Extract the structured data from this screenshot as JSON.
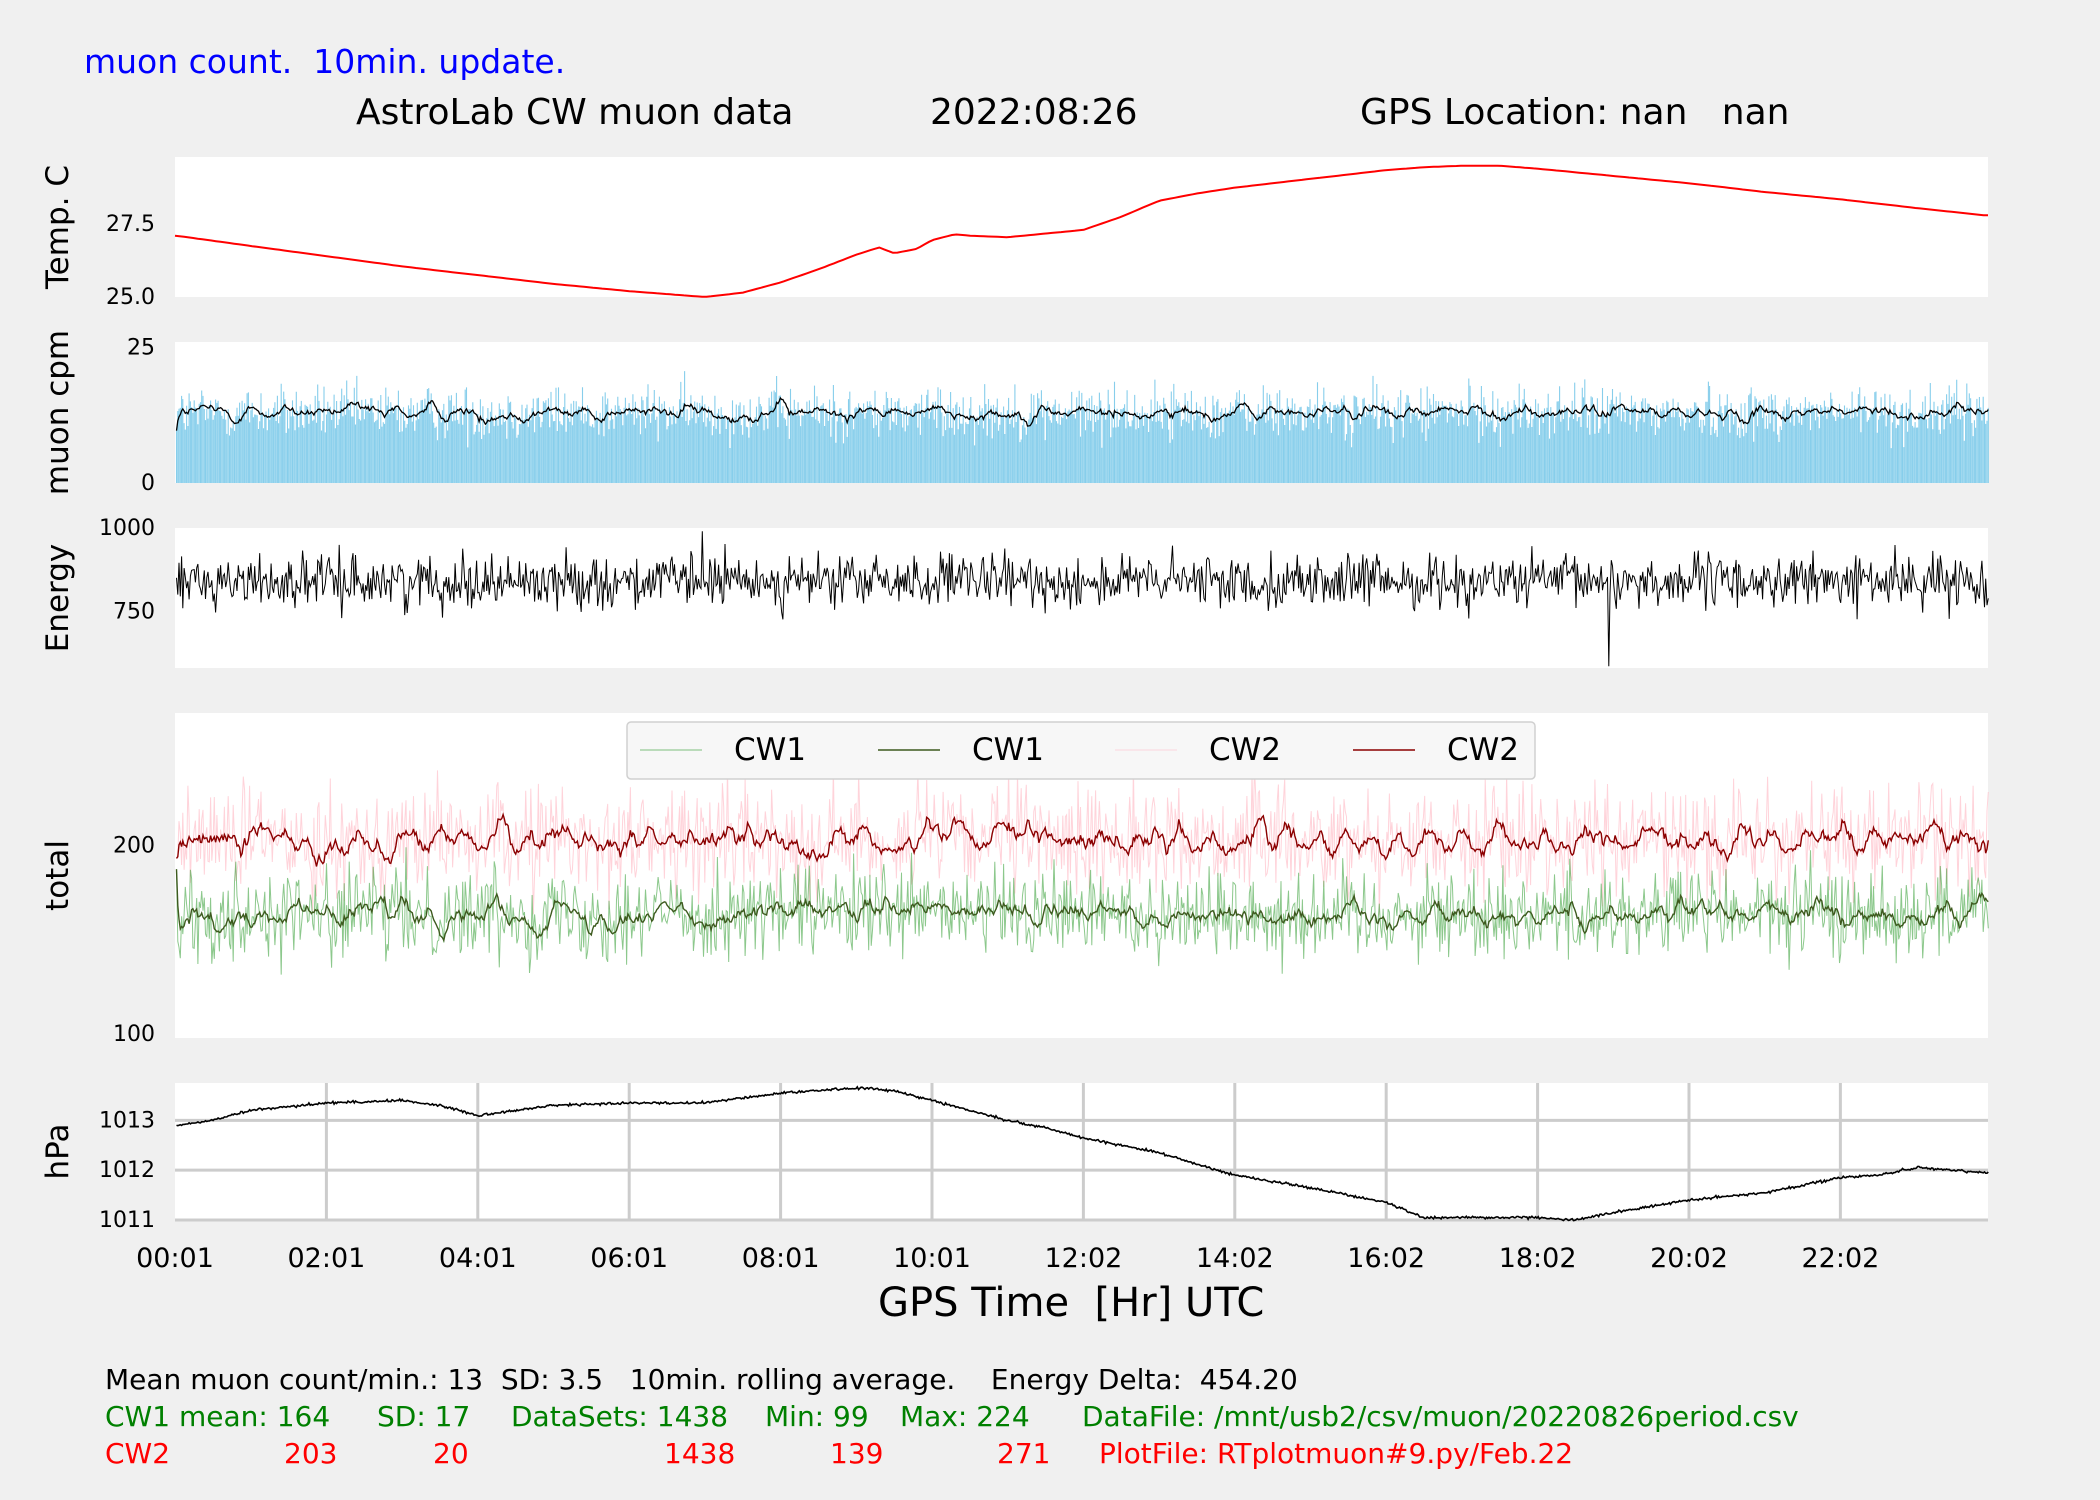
{
  "header": {
    "update_note": "muon count.  10min. update.",
    "title": "AstroLab CW muon data",
    "date": "2022:08:26",
    "gps": "GPS Location: nan   nan"
  },
  "colors": {
    "background": "#f0f0f0",
    "panel": "#ffffff",
    "temperature": "#ff0000",
    "muon_bars": "#87ceeb",
    "cw1_raw": "#2e9b2e",
    "cw1_avg": "#3d5a1e",
    "cw2_raw": "#ffc0cb",
    "cw2_avg": "#8b0000",
    "header_blue": "#0000ff",
    "stats_green": "#008000",
    "stats_red": "#ff0000",
    "grid": "#cccccc"
  },
  "chart_data": [
    {
      "type": "line",
      "ylabel": "Temp. C",
      "ylim": [
        25.0,
        29.8
      ],
      "yticks": [
        "27.5",
        "25.0"
      ],
      "x_unit": "hour",
      "series": [
        {
          "color": "#ff0000",
          "x": [
            0.02,
            1,
            2,
            3,
            4,
            5,
            6,
            7,
            7.5,
            8,
            8.5,
            9,
            9.3,
            9.5,
            9.8,
            10,
            10.3,
            10.5,
            11,
            12,
            12.5,
            13,
            13.5,
            14,
            15,
            16,
            16.5,
            17,
            17.5,
            18,
            19,
            20,
            21,
            22,
            23,
            23.9
          ],
          "y": [
            27.1,
            26.75,
            26.4,
            26.05,
            25.75,
            25.45,
            25.2,
            25.0,
            25.15,
            25.5,
            25.95,
            26.45,
            26.7,
            26.5,
            26.65,
            26.95,
            27.15,
            27.1,
            27.05,
            27.3,
            27.75,
            28.3,
            28.55,
            28.75,
            29.05,
            29.35,
            29.45,
            29.5,
            29.5,
            29.4,
            29.15,
            28.9,
            28.6,
            28.35,
            28.05,
            27.8
          ]
        }
      ]
    },
    {
      "type": "bar",
      "ylabel": "muon cpm",
      "ylim": [
        0,
        26
      ],
      "yticks": [
        "25",
        "0"
      ],
      "x_unit": "hour",
      "generated_series": {
        "name_hint": "per-minute muon counts",
        "mean": 13,
        "sd": 3.5,
        "datasets": 1438
      },
      "overlay": {
        "label": "10min. rolling average",
        "color": "#000000"
      }
    },
    {
      "type": "line",
      "ylabel": "Energy",
      "ylim": [
        580,
        1000
      ],
      "yticks": [
        "1000",
        "750"
      ],
      "x_unit": "hour",
      "generated_series": {
        "mean": 840,
        "spread": 55,
        "min": 585,
        "max": 990
      }
    },
    {
      "type": "line",
      "ylabel": "total",
      "ylim": [
        98,
        270
      ],
      "yticks": [
        "200",
        "100"
      ],
      "x_unit": "hour",
      "legend": {
        "placement": "top-center",
        "entries": [
          {
            "label": "CW1",
            "color": "#2e9b2e",
            "style": "raw"
          },
          {
            "label": "CW1",
            "color": "#3d5a1e",
            "style": "average"
          },
          {
            "label": "CW2",
            "color": "#ffc0cb",
            "style": "raw"
          },
          {
            "label": "CW2",
            "color": "#8b0000",
            "style": "average"
          }
        ]
      },
      "series": [
        {
          "name": "CW1",
          "mean": 164,
          "sd": 17,
          "min": 99,
          "max": 224,
          "datasets": 1438
        },
        {
          "name": "CW2",
          "mean": 203,
          "sd": 20,
          "min": 139,
          "max": 271,
          "datasets": 1438
        }
      ]
    },
    {
      "type": "line",
      "ylabel": "hPa",
      "ylim": [
        1011.0,
        1013.75
      ],
      "yticks": [
        "1013",
        "1012",
        "1011"
      ],
      "grid": true,
      "x_unit": "hour",
      "series": [
        {
          "color": "#000000",
          "x": [
            0.02,
            0.5,
            1,
            2,
            3,
            3.5,
            4,
            4.5,
            5,
            6,
            7,
            8,
            9,
            9.5,
            10,
            11,
            11.5,
            12,
            13,
            14,
            15,
            16,
            16.5,
            17,
            18,
            18.5,
            19,
            20,
            21,
            22,
            22.5,
            23,
            23.9
          ],
          "y": [
            1012.9,
            1013.0,
            1013.2,
            1013.35,
            1013.4,
            1013.3,
            1013.1,
            1013.2,
            1013.3,
            1013.35,
            1013.35,
            1013.55,
            1013.65,
            1013.6,
            1013.4,
            1013.0,
            1012.85,
            1012.65,
            1012.35,
            1011.9,
            1011.65,
            1011.35,
            1011.05,
            1011.05,
            1011.05,
            1011.0,
            1011.15,
            1011.4,
            1011.55,
            1011.85,
            1011.9,
            1012.05,
            1011.95
          ]
        }
      ]
    }
  ],
  "x_axis": {
    "label": "GPS Time  [Hr] UTC",
    "ticks": [
      "00:01",
      "02:01",
      "04:01",
      "06:01",
      "08:01",
      "10:01",
      "12:02",
      "14:02",
      "16:02",
      "18:02",
      "20:02",
      "22:02"
    ],
    "tick_hours": [
      0,
      2,
      4,
      6,
      8,
      10,
      12,
      14,
      16,
      18,
      20,
      22
    ],
    "range_hours": [
      0,
      23.95
    ]
  },
  "stats": {
    "line1": "Mean muon count/min.: 13  SD: 3.5   10min. rolling average.    Energy Delta:  454.20",
    "cw1": {
      "label": "CW1 mean: 164",
      "sd": "SD: 17",
      "datasets": "DataSets: 1438",
      "min": "Min: 99",
      "max": "Max: 224",
      "file": "DataFile: /mnt/usb2/csv/muon/20220826period.csv"
    },
    "cw2": {
      "label": "CW2",
      "mean": "203",
      "sd": "20",
      "datasets": "1438",
      "min": "139",
      "max": "271",
      "file": "PlotFile: RTplotmuon#9.py/Feb.22"
    }
  }
}
